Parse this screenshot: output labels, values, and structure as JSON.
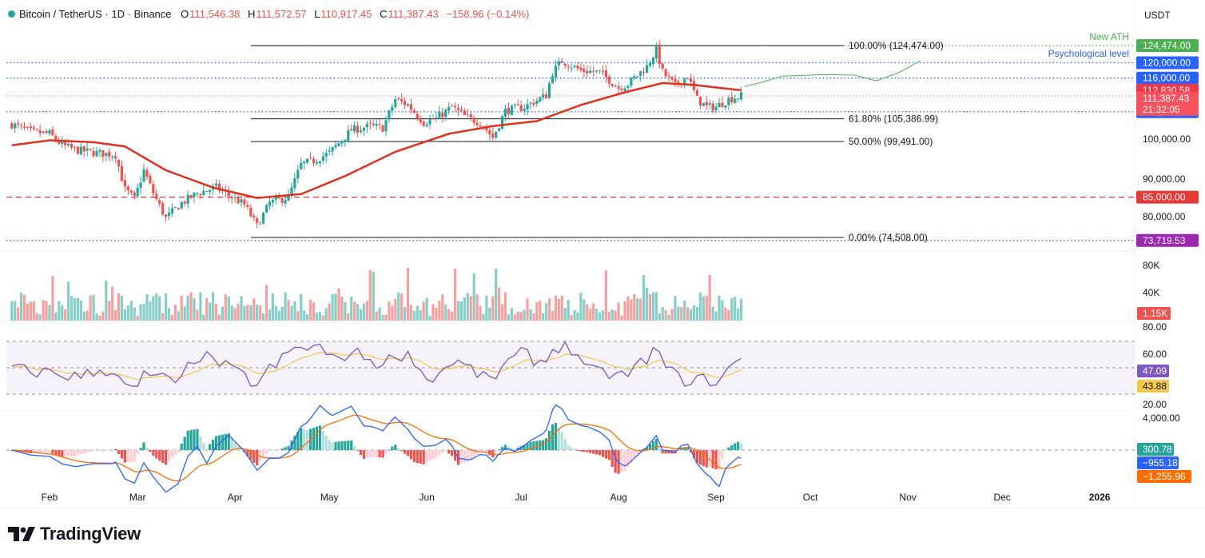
{
  "header": {
    "symbol": "Bitcoin / TetherUS · 1D · Binance",
    "open_label": "O",
    "open": "111,546.38",
    "high_label": "H",
    "high": "111,572.57",
    "low_label": "L",
    "low": "110,917.45",
    "close_label": "C",
    "close": "111,387.43",
    "change": "−158.96 (−0.14%)"
  },
  "currency": "USDT",
  "branding": {
    "name": "TradingView"
  },
  "colors": {
    "up": "#26a69a",
    "down": "#ef5350",
    "sma": "#e0301e",
    "rsi": "#7e57c2",
    "rsi_ma": "#f2c94c",
    "macd": "#2962ff",
    "signal": "#ff6d00",
    "blue_level": "#2962ff",
    "fib_line": "#131722",
    "ath_green": "#4caf50"
  },
  "chart_data": {
    "type": "candlestick",
    "x_labels": [
      "Feb",
      "Mar",
      "Apr",
      "May",
      "Jun",
      "Jul",
      "Aug",
      "Sep",
      "Oct",
      "Nov",
      "Dec",
      "2026"
    ],
    "price_axis": {
      "ticks": [
        "100,000.00",
        "90,000.00",
        "80,000.00"
      ],
      "range": [
        72000,
        128000
      ]
    },
    "price_path": [
      [
        "2025-01-20",
        104000
      ],
      [
        "2025-01-26",
        102000
      ],
      [
        "2025-02-01",
        101500
      ],
      [
        "2025-02-05",
        98500
      ],
      [
        "2025-02-10",
        97200
      ],
      [
        "2025-02-16",
        96500
      ],
      [
        "2025-02-22",
        96000
      ],
      [
        "2025-02-25",
        87000
      ],
      [
        "2025-02-28",
        84500
      ],
      [
        "2025-03-03",
        92000
      ],
      [
        "2025-03-06",
        86000
      ],
      [
        "2025-03-10",
        79500
      ],
      [
        "2025-03-15",
        83500
      ],
      [
        "2025-03-20",
        86000
      ],
      [
        "2025-03-26",
        87500
      ],
      [
        "2025-04-01",
        84500
      ],
      [
        "2025-04-04",
        83000
      ],
      [
        "2025-04-08",
        77500
      ],
      [
        "2025-04-12",
        83500
      ],
      [
        "2025-04-18",
        85000
      ],
      [
        "2025-04-22",
        93500
      ],
      [
        "2025-04-26",
        94500
      ],
      [
        "2025-05-01",
        96500
      ],
      [
        "2025-05-08",
        102500
      ],
      [
        "2025-05-14",
        103500
      ],
      [
        "2025-05-18",
        103000
      ],
      [
        "2025-05-22",
        110500
      ],
      [
        "2025-05-26",
        109000
      ],
      [
        "2025-05-31",
        104500
      ],
      [
        "2025-06-04",
        105500
      ],
      [
        "2025-06-09",
        108500
      ],
      [
        "2025-06-14",
        105500
      ],
      [
        "2025-06-18",
        104500
      ],
      [
        "2025-06-22",
        100500
      ],
      [
        "2025-06-26",
        107500
      ],
      [
        "2025-07-02",
        108500
      ],
      [
        "2025-07-09",
        111500
      ],
      [
        "2025-07-11",
        117500
      ],
      [
        "2025-07-14",
        120500
      ],
      [
        "2025-07-20",
        118000
      ],
      [
        "2025-07-26",
        117500
      ],
      [
        "2025-08-01",
        113500
      ],
      [
        "2025-08-04",
        114500
      ],
      [
        "2025-08-10",
        119000
      ],
      [
        "2025-08-13",
        123500
      ],
      [
        "2025-08-15",
        117500
      ],
      [
        "2025-08-19",
        114000
      ],
      [
        "2025-08-23",
        116500
      ],
      [
        "2025-08-26",
        110500
      ],
      [
        "2025-08-29",
        108500
      ],
      [
        "2025-09-01",
        108500
      ],
      [
        "2025-09-05",
        110500
      ],
      [
        "2025-09-09",
        111387
      ]
    ],
    "sma_line": [
      [
        "2025-01-20",
        98500
      ],
      [
        "2025-02-01",
        99800
      ],
      [
        "2025-02-15",
        99300
      ],
      [
        "2025-02-25",
        98200
      ],
      [
        "2025-03-10",
        92000
      ],
      [
        "2025-03-25",
        87500
      ],
      [
        "2025-04-08",
        84800
      ],
      [
        "2025-04-22",
        85800
      ],
      [
        "2025-05-06",
        90500
      ],
      [
        "2025-05-22",
        96800
      ],
      [
        "2025-06-08",
        101500
      ],
      [
        "2025-06-22",
        103500
      ],
      [
        "2025-07-06",
        104800
      ],
      [
        "2025-07-20",
        109000
      ],
      [
        "2025-08-03",
        112300
      ],
      [
        "2025-08-15",
        114700
      ],
      [
        "2025-08-25",
        114200
      ],
      [
        "2025-09-09",
        112830
      ]
    ],
    "projection_path": [
      [
        "2025-09-10",
        113800
      ],
      [
        "2025-09-16",
        115000
      ],
      [
        "2025-09-22",
        116500
      ],
      [
        "2025-10-05",
        116900
      ],
      [
        "2025-10-15",
        116800
      ],
      [
        "2025-10-22",
        115300
      ],
      [
        "2025-10-29",
        117400
      ],
      [
        "2025-11-05",
        120500
      ]
    ],
    "fibonacci": [
      {
        "label": "100.00% (124,474.00)",
        "price": 124474
      },
      {
        "label": "61.80% (105,386.99)",
        "price": 105387
      },
      {
        "label": "50.00% (99,491.00)",
        "price": 99491
      },
      {
        "label": "0.00% (74,508.00)",
        "price": 74508
      }
    ],
    "level_lines": [
      {
        "price": 124474,
        "label": "124,474.00",
        "annotation": "New ATH",
        "style": "dotted",
        "color": "#4caf50"
      },
      {
        "price": 120000,
        "label": "120,000.00",
        "annotation": "Psychological level",
        "style": "dotted",
        "color": "#2962ff"
      },
      {
        "price": 116000,
        "label": "116,000.00",
        "style": "dotted",
        "color": "#2962ff"
      },
      {
        "price": 107245,
        "label": "107,245.00",
        "style": "dotted",
        "color": "#2962ff"
      },
      {
        "price": 85000,
        "label": "85,000.00",
        "style": "dashed",
        "color": "#e53935"
      },
      {
        "price": 73719.53,
        "label": "73,719.53",
        "style": "dotted",
        "color": "#9c27b0"
      }
    ],
    "price_badges": [
      {
        "label": "112,830.58",
        "price": 112830.58,
        "color": "#f23645"
      },
      {
        "label": "111,387.43",
        "sub": "21:32:05",
        "price": 111387.43,
        "color": "#f7525f"
      }
    ],
    "volume": {
      "axis_ticks": [
        "80K",
        "40K"
      ],
      "current": "1.15K"
    },
    "rsi": {
      "axis_ticks": [
        "80.00",
        "60.00",
        "20.00"
      ],
      "value": "47.09",
      "ma_value": "43.88",
      "upper": 70,
      "middle": 50,
      "lower": 30
    },
    "macd": {
      "axis_ticks": [
        "4,000.00"
      ],
      "histogram": "300.78",
      "macd": "−955.18",
      "signal": "−1,255.96"
    }
  }
}
